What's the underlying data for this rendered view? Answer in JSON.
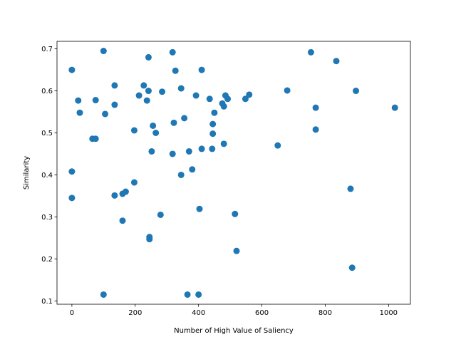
{
  "chart_data": {
    "type": "scatter",
    "title": "",
    "xlabel": "Number of High Value of Saliency",
    "ylabel": "Similarity",
    "xlim": [
      -47,
      1069
    ],
    "ylim": [
      0.092,
      0.718
    ],
    "xticks": [
      0,
      200,
      400,
      600,
      800,
      1000
    ],
    "yticks": [
      0.1,
      0.2,
      0.3,
      0.4,
      0.5,
      0.6,
      0.7
    ],
    "grid": false,
    "legend": "none",
    "marker_color": "#1f77b4",
    "points": [
      {
        "x": 0,
        "y": 0.65
      },
      {
        "x": 0,
        "y": 0.408
      },
      {
        "x": 0,
        "y": 0.345
      },
      {
        "x": 20,
        "y": 0.577
      },
      {
        "x": 25,
        "y": 0.548
      },
      {
        "x": 65,
        "y": 0.486
      },
      {
        "x": 75,
        "y": 0.486
      },
      {
        "x": 75,
        "y": 0.578
      },
      {
        "x": 100,
        "y": 0.695
      },
      {
        "x": 105,
        "y": 0.545
      },
      {
        "x": 100,
        "y": 0.115
      },
      {
        "x": 135,
        "y": 0.613
      },
      {
        "x": 135,
        "y": 0.567
      },
      {
        "x": 135,
        "y": 0.351
      },
      {
        "x": 160,
        "y": 0.291
      },
      {
        "x": 160,
        "y": 0.355
      },
      {
        "x": 170,
        "y": 0.36
      },
      {
        "x": 197,
        "y": 0.506
      },
      {
        "x": 197,
        "y": 0.382
      },
      {
        "x": 212,
        "y": 0.589
      },
      {
        "x": 227,
        "y": 0.613
      },
      {
        "x": 237,
        "y": 0.577
      },
      {
        "x": 242,
        "y": 0.6
      },
      {
        "x": 242,
        "y": 0.68
      },
      {
        "x": 245,
        "y": 0.252
      },
      {
        "x": 245,
        "y": 0.247
      },
      {
        "x": 252,
        "y": 0.456
      },
      {
        "x": 256,
        "y": 0.517
      },
      {
        "x": 265,
        "y": 0.5
      },
      {
        "x": 280,
        "y": 0.305
      },
      {
        "x": 285,
        "y": 0.598
      },
      {
        "x": 318,
        "y": 0.692
      },
      {
        "x": 318,
        "y": 0.45
      },
      {
        "x": 322,
        "y": 0.524
      },
      {
        "x": 327,
        "y": 0.648
      },
      {
        "x": 345,
        "y": 0.606
      },
      {
        "x": 345,
        "y": 0.4
      },
      {
        "x": 355,
        "y": 0.535
      },
      {
        "x": 365,
        "y": 0.115
      },
      {
        "x": 370,
        "y": 0.456
      },
      {
        "x": 380,
        "y": 0.413
      },
      {
        "x": 392,
        "y": 0.589
      },
      {
        "x": 400,
        "y": 0.115
      },
      {
        "x": 403,
        "y": 0.319
      },
      {
        "x": 410,
        "y": 0.65
      },
      {
        "x": 410,
        "y": 0.462
      },
      {
        "x": 435,
        "y": 0.581
      },
      {
        "x": 443,
        "y": 0.462
      },
      {
        "x": 445,
        "y": 0.521
      },
      {
        "x": 445,
        "y": 0.498
      },
      {
        "x": 450,
        "y": 0.548
      },
      {
        "x": 475,
        "y": 0.57
      },
      {
        "x": 480,
        "y": 0.563
      },
      {
        "x": 480,
        "y": 0.474
      },
      {
        "x": 485,
        "y": 0.589
      },
      {
        "x": 492,
        "y": 0.581
      },
      {
        "x": 515,
        "y": 0.307
      },
      {
        "x": 520,
        "y": 0.219
      },
      {
        "x": 548,
        "y": 0.581
      },
      {
        "x": 560,
        "y": 0.591
      },
      {
        "x": 650,
        "y": 0.47
      },
      {
        "x": 680,
        "y": 0.601
      },
      {
        "x": 755,
        "y": 0.692
      },
      {
        "x": 770,
        "y": 0.56
      },
      {
        "x": 770,
        "y": 0.508
      },
      {
        "x": 835,
        "y": 0.671
      },
      {
        "x": 880,
        "y": 0.367
      },
      {
        "x": 885,
        "y": 0.179
      },
      {
        "x": 897,
        "y": 0.6
      },
      {
        "x": 1020,
        "y": 0.56
      }
    ]
  }
}
